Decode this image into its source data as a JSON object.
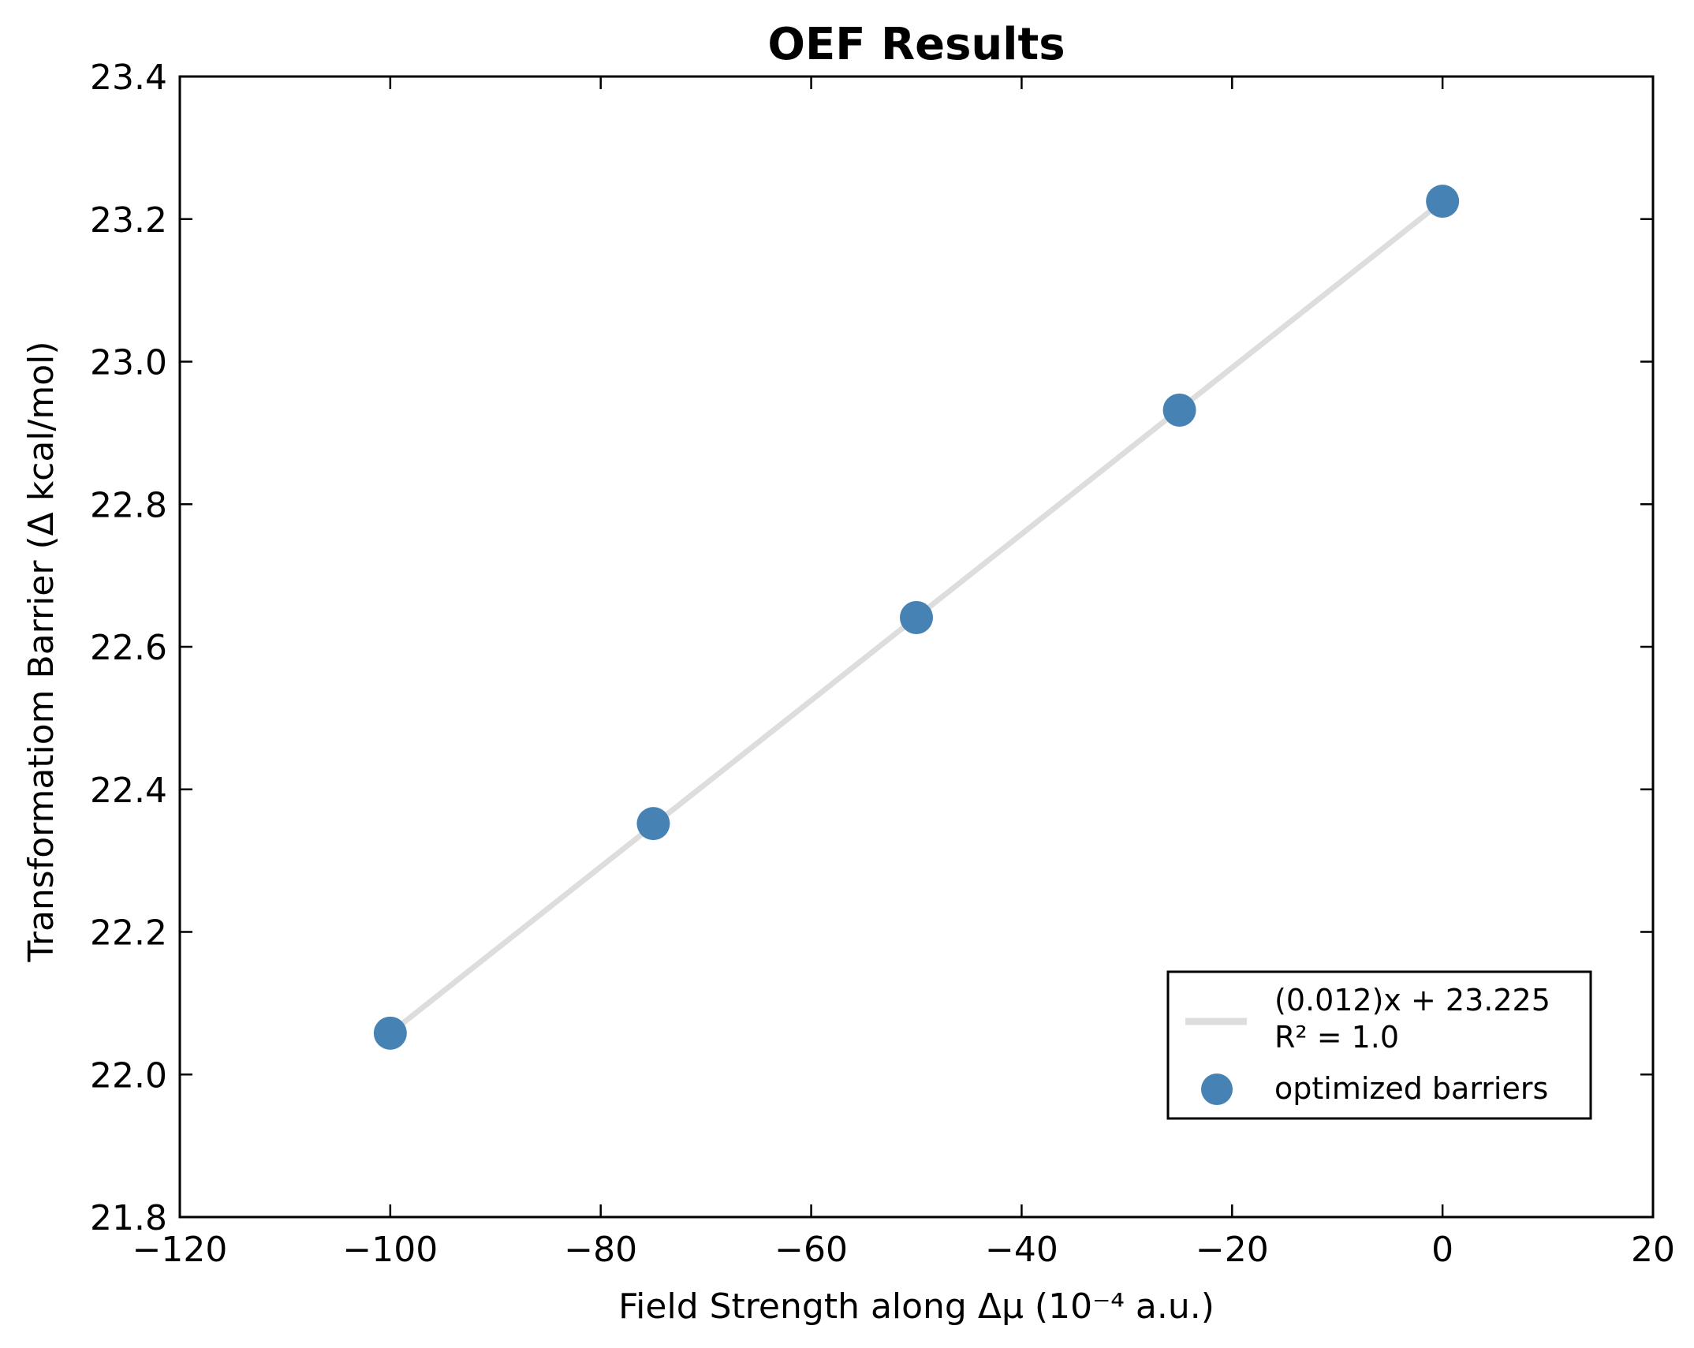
{
  "chart_data": {
    "type": "scatter",
    "title": "OEF Results",
    "xlabel": "Field Strength along Δμ (10⁻⁴ a.u.)",
    "ylabel": "Transformatiom Barrier (Δ kcal/mol)",
    "xlim": [
      -120,
      20
    ],
    "ylim": [
      21.8,
      23.4
    ],
    "x_ticks": [
      "−120",
      "−100",
      "−80",
      "−60",
      "−40",
      "−20",
      "0",
      "20"
    ],
    "y_ticks": [
      "21.8",
      "22.0",
      "22.2",
      "22.4",
      "22.6",
      "22.8",
      "23.0",
      "23.2",
      "23.4"
    ],
    "x_tick_values": [
      -120,
      -100,
      -80,
      -60,
      -40,
      -20,
      0,
      20
    ],
    "y_tick_values": [
      21.8,
      22.0,
      22.2,
      22.4,
      22.6,
      22.8,
      23.0,
      23.2,
      23.4
    ],
    "series": [
      {
        "name": "optimized barriers",
        "kind": "scatter",
        "color": "#4682b4",
        "x": [
          -100,
          -75,
          -50,
          -25,
          0
        ],
        "y": [
          22.058,
          22.352,
          22.641,
          22.932,
          23.225
        ]
      },
      {
        "name": "(0.012)x + 23.225",
        "kind": "line",
        "color": "#dddddd",
        "x": [
          -100,
          0
        ],
        "y": [
          22.058,
          23.225
        ]
      }
    ],
    "legend": {
      "position": "lower-right",
      "fit_label": "(0.012)x + 23.225",
      "r2_label": "R² = 1.0",
      "scatter_label": "optimized barriers"
    },
    "grid": false
  }
}
